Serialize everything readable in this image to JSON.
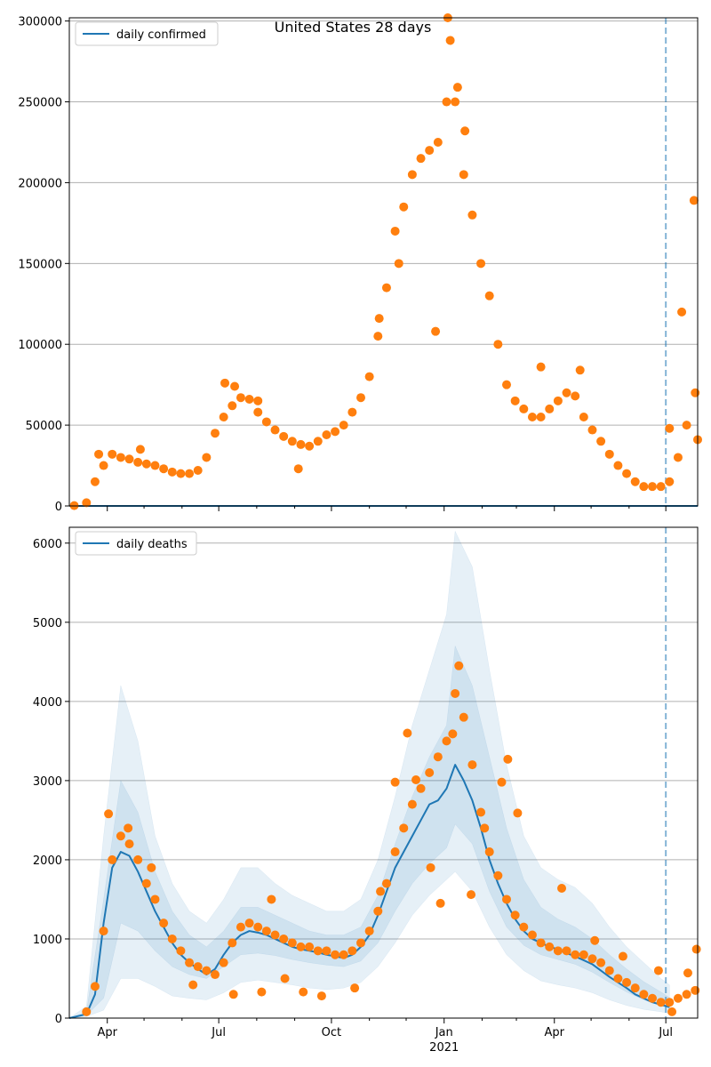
{
  "title": "United States 28 days",
  "colors": {
    "line": "#1f77b4",
    "points": "#ff7f0e",
    "band": "#1f77b4",
    "grid": "#b0b0b0",
    "vline": "#1f77b4"
  },
  "chart_data": [
    {
      "type": "scatter",
      "panel": "top",
      "legend": "top-left",
      "grid": "horizontal",
      "xlim": [
        "2020-03-01",
        "2021-07-27"
      ],
      "ylim": [
        0,
        302000
      ],
      "yticks": [
        0,
        50000,
        100000,
        150000,
        200000,
        250000,
        300000
      ],
      "ytick_labels": [
        "0",
        "50000",
        "100000",
        "150000",
        "200000",
        "250000",
        "300000"
      ],
      "vline": "2021-07-01",
      "series": [
        {
          "name": "daily confirmed",
          "kind": "line",
          "x": [
            "2020-03-01",
            "2021-07-27"
          ],
          "y": [
            0,
            0
          ]
        },
        {
          "kind": "scatter",
          "x": [
            "2020-03-05",
            "2020-03-15",
            "2020-03-22",
            "2020-03-29",
            "2020-04-05",
            "2020-04-12",
            "2020-04-19",
            "2020-04-26",
            "2020-05-03",
            "2020-05-10",
            "2020-05-17",
            "2020-05-24",
            "2020-05-31",
            "2020-06-07",
            "2020-06-14",
            "2020-06-21",
            "2020-06-28",
            "2020-07-05",
            "2020-07-12",
            "2020-07-19",
            "2020-07-26",
            "2020-08-02",
            "2020-08-09",
            "2020-08-16",
            "2020-08-23",
            "2020-08-30",
            "2020-09-06",
            "2020-09-13",
            "2020-09-20",
            "2020-09-27",
            "2020-10-04",
            "2020-10-11",
            "2020-10-18",
            "2020-10-25",
            "2020-11-01",
            "2020-11-08",
            "2020-11-15",
            "2020-11-22",
            "2020-11-29",
            "2020-12-06",
            "2020-12-13",
            "2020-12-20",
            "2020-12-27",
            "2021-01-03",
            "2021-01-10",
            "2021-01-17",
            "2021-01-24",
            "2021-01-31",
            "2021-02-07",
            "2021-02-14",
            "2021-02-21",
            "2021-02-28",
            "2021-03-07",
            "2021-03-14",
            "2021-03-21",
            "2021-03-28",
            "2021-04-04",
            "2021-04-11",
            "2021-04-18",
            "2021-04-25",
            "2021-05-02",
            "2021-05-09",
            "2021-05-16",
            "2021-05-23",
            "2021-05-30",
            "2021-06-06",
            "2021-06-13",
            "2021-06-20",
            "2021-06-27",
            "2021-07-04",
            "2021-07-11",
            "2021-07-18",
            "2021-07-25"
          ],
          "y": [
            200,
            2000,
            15000,
            25000,
            32000,
            30000,
            29000,
            27000,
            26000,
            25000,
            23000,
            21000,
            20000,
            20000,
            22000,
            30000,
            45000,
            55000,
            62000,
            67000,
            66000,
            58000,
            52000,
            47000,
            43000,
            40000,
            38000,
            37000,
            40000,
            44000,
            46000,
            50000,
            58000,
            67000,
            80000,
            105000,
            135000,
            170000,
            185000,
            205000,
            215000,
            220000,
            225000,
            250000,
            250000,
            205000,
            180000,
            150000,
            130000,
            100000,
            75000,
            65000,
            60000,
            55000,
            55000,
            60000,
            65000,
            70000,
            68000,
            55000,
            47000,
            40000,
            32000,
            25000,
            20000,
            15000,
            12000,
            12000,
            12000,
            15000,
            30000,
            50000,
            70000
          ]
        },
        {
          "kind": "scatter",
          "x": [
            "2020-03-25",
            "2020-04-28",
            "2020-07-06",
            "2020-07-14",
            "2020-08-02",
            "2020-09-04",
            "2020-11-09",
            "2020-11-25",
            "2020-12-25",
            "2021-01-04",
            "2021-01-06",
            "2021-01-12",
            "2021-01-18",
            "2021-03-21",
            "2021-04-22",
            "2021-07-04",
            "2021-07-14",
            "2021-07-24",
            "2021-07-27"
          ],
          "y": [
            32000,
            35000,
            76000,
            74000,
            65000,
            23000,
            116000,
            150000,
            108000,
            302000,
            288000,
            259000,
            232000,
            86000,
            84000,
            48000,
            120000,
            189000,
            41000
          ]
        }
      ]
    },
    {
      "type": "line",
      "panel": "bottom",
      "legend": "top-left",
      "grid": "horizontal",
      "xlim": [
        "2020-03-01",
        "2021-07-27"
      ],
      "ylim": [
        0,
        6200
      ],
      "yticks": [
        0,
        1000,
        2000,
        3000,
        4000,
        5000,
        6000
      ],
      "ytick_labels": [
        "0",
        "1000",
        "2000",
        "3000",
        "4000",
        "5000",
        "6000"
      ],
      "vline": "2021-07-01",
      "xticks": [
        {
          "date": "2020-04-01",
          "label": "Apr"
        },
        {
          "date": "2020-07-01",
          "label": "Jul"
        },
        {
          "date": "2020-10-01",
          "label": "Oct"
        },
        {
          "date": "2021-01-01",
          "label": "Jan",
          "sublabel": "2021"
        },
        {
          "date": "2021-04-01",
          "label": "Apr"
        },
        {
          "date": "2021-07-01",
          "label": "Jul"
        }
      ],
      "series": [
        {
          "name": "daily deaths",
          "kind": "line",
          "x": [
            "2020-03-01",
            "2020-03-15",
            "2020-03-22",
            "2020-03-29",
            "2020-04-05",
            "2020-04-12",
            "2020-04-19",
            "2020-04-26",
            "2020-05-03",
            "2020-05-10",
            "2020-05-17",
            "2020-05-24",
            "2020-05-31",
            "2020-06-07",
            "2020-06-14",
            "2020-06-21",
            "2020-06-28",
            "2020-07-05",
            "2020-07-12",
            "2020-07-19",
            "2020-07-26",
            "2020-08-02",
            "2020-08-09",
            "2020-08-16",
            "2020-08-23",
            "2020-08-30",
            "2020-09-06",
            "2020-09-13",
            "2020-09-20",
            "2020-09-27",
            "2020-10-04",
            "2020-10-11",
            "2020-10-18",
            "2020-10-25",
            "2020-11-01",
            "2020-11-08",
            "2020-11-15",
            "2020-11-22",
            "2020-11-29",
            "2020-12-06",
            "2020-12-13",
            "2020-12-20",
            "2020-12-27",
            "2021-01-03",
            "2021-01-10",
            "2021-01-17",
            "2021-01-24",
            "2021-01-31",
            "2021-02-07",
            "2021-02-14",
            "2021-02-21",
            "2021-02-28",
            "2021-03-07",
            "2021-03-14",
            "2021-03-21",
            "2021-03-28",
            "2021-04-04",
            "2021-04-11",
            "2021-04-18",
            "2021-04-25",
            "2021-05-02",
            "2021-05-09",
            "2021-05-16",
            "2021-05-23",
            "2021-05-30",
            "2021-06-06",
            "2021-06-13",
            "2021-06-20",
            "2021-06-27",
            "2021-07-04"
          ],
          "y": [
            0,
            50,
            300,
            1200,
            1900,
            2100,
            2050,
            1850,
            1600,
            1350,
            1150,
            950,
            800,
            700,
            620,
            550,
            620,
            800,
            950,
            1050,
            1100,
            1080,
            1050,
            1000,
            950,
            900,
            870,
            850,
            830,
            800,
            780,
            760,
            800,
            900,
            1050,
            1300,
            1600,
            1900,
            2100,
            2300,
            2500,
            2700,
            2750,
            2900,
            3200,
            3000,
            2750,
            2400,
            2000,
            1700,
            1450,
            1250,
            1100,
            1000,
            950,
            900,
            870,
            820,
            780,
            730,
            680,
            600,
            520,
            450,
            380,
            300,
            250,
            200,
            170,
            140
          ]
        },
        {
          "kind": "band",
          "x": [
            "2020-03-01",
            "2020-03-15",
            "2020-03-29",
            "2020-04-12",
            "2020-04-26",
            "2020-05-10",
            "2020-05-24",
            "2020-06-07",
            "2020-06-21",
            "2020-07-05",
            "2020-07-19",
            "2020-08-02",
            "2020-08-16",
            "2020-08-30",
            "2020-09-13",
            "2020-09-27",
            "2020-10-11",
            "2020-10-25",
            "2020-11-08",
            "2020-11-22",
            "2020-12-06",
            "2020-12-20",
            "2021-01-03",
            "2021-01-10",
            "2021-01-24",
            "2021-02-07",
            "2021-02-21",
            "2021-03-07",
            "2021-03-21",
            "2021-04-04",
            "2021-04-18",
            "2021-05-02",
            "2021-05-16",
            "2021-05-30",
            "2021-06-13",
            "2021-06-27",
            "2021-07-04"
          ],
          "lower": [
            0,
            20,
            100,
            500,
            500,
            400,
            280,
            250,
            230,
            320,
            450,
            480,
            450,
            420,
            380,
            360,
            380,
            450,
            650,
            950,
            1300,
            1550,
            1750,
            1850,
            1600,
            1150,
            800,
            600,
            470,
            420,
            380,
            320,
            230,
            160,
            110,
            80,
            60
          ],
          "upper": [
            0,
            150,
            2300,
            4200,
            3500,
            2300,
            1700,
            1350,
            1200,
            1500,
            1900,
            1900,
            1700,
            1550,
            1450,
            1350,
            1350,
            1500,
            2000,
            2800,
            3700,
            4400,
            5100,
            6150,
            5700,
            4400,
            3200,
            2300,
            1900,
            1750,
            1650,
            1450,
            1150,
            900,
            700,
            500,
            420
          ]
        },
        {
          "kind": "band",
          "x": [
            "2020-03-01",
            "2020-03-15",
            "2020-03-29",
            "2020-04-12",
            "2020-04-26",
            "2020-05-10",
            "2020-05-24",
            "2020-06-07",
            "2020-06-21",
            "2020-07-05",
            "2020-07-19",
            "2020-08-02",
            "2020-08-16",
            "2020-08-30",
            "2020-09-13",
            "2020-09-27",
            "2020-10-11",
            "2020-10-25",
            "2020-11-08",
            "2020-11-22",
            "2020-12-06",
            "2020-12-20",
            "2021-01-03",
            "2021-01-10",
            "2021-01-24",
            "2021-02-07",
            "2021-02-21",
            "2021-03-07",
            "2021-03-21",
            "2021-04-04",
            "2021-04-18",
            "2021-05-02",
            "2021-05-16",
            "2021-05-30",
            "2021-06-13",
            "2021-06-27",
            "2021-07-04"
          ],
          "lower": [
            0,
            35,
            250,
            1200,
            1100,
            850,
            650,
            550,
            500,
            650,
            800,
            820,
            790,
            740,
            700,
            670,
            650,
            720,
            950,
            1350,
            1700,
            1950,
            2150,
            2450,
            2200,
            1600,
            1150,
            920,
            800,
            740,
            680,
            580,
            450,
            330,
            230,
            160,
            120
          ],
          "upper": [
            0,
            80,
            1500,
            3000,
            2600,
            1850,
            1350,
            1050,
            900,
            1100,
            1400,
            1400,
            1300,
            1200,
            1100,
            1050,
            1050,
            1150,
            1550,
            2200,
            2800,
            3300,
            3700,
            4700,
            4200,
            3300,
            2400,
            1750,
            1400,
            1250,
            1150,
            1000,
            800,
            620,
            460,
            330,
            260
          ]
        },
        {
          "kind": "scatter",
          "x": [
            "2020-03-15",
            "2020-03-22",
            "2020-03-29",
            "2020-04-05",
            "2020-04-12",
            "2020-04-19",
            "2020-04-26",
            "2020-05-03",
            "2020-05-10",
            "2020-05-17",
            "2020-05-24",
            "2020-05-31",
            "2020-06-07",
            "2020-06-14",
            "2020-06-21",
            "2020-06-28",
            "2020-07-05",
            "2020-07-12",
            "2020-07-19",
            "2020-07-26",
            "2020-08-02",
            "2020-08-09",
            "2020-08-16",
            "2020-08-23",
            "2020-08-30",
            "2020-09-06",
            "2020-09-13",
            "2020-09-20",
            "2020-09-27",
            "2020-10-04",
            "2020-10-11",
            "2020-10-18",
            "2020-10-25",
            "2020-11-01",
            "2020-11-08",
            "2020-11-15",
            "2020-11-22",
            "2020-11-29",
            "2020-12-06",
            "2020-12-13",
            "2020-12-20",
            "2020-12-27",
            "2021-01-03",
            "2021-01-10",
            "2021-01-17",
            "2021-01-24",
            "2021-01-31",
            "2021-02-07",
            "2021-02-14",
            "2021-02-21",
            "2021-02-28",
            "2021-03-07",
            "2021-03-14",
            "2021-03-21",
            "2021-03-28",
            "2021-04-04",
            "2021-04-11",
            "2021-04-18",
            "2021-04-25",
            "2021-05-02",
            "2021-05-09",
            "2021-05-16",
            "2021-05-23",
            "2021-05-30",
            "2021-06-06",
            "2021-06-13",
            "2021-06-20",
            "2021-06-27",
            "2021-07-04",
            "2021-07-11",
            "2021-07-18",
            "2021-07-25"
          ],
          "y": [
            80,
            400,
            1100,
            2000,
            2300,
            2200,
            2000,
            1700,
            1500,
            1200,
            1000,
            850,
            700,
            650,
            600,
            550,
            700,
            950,
            1150,
            1200,
            1150,
            1100,
            1050,
            1000,
            950,
            900,
            900,
            850,
            850,
            800,
            800,
            850,
            950,
            1100,
            1350,
            1700,
            2100,
            2400,
            2700,
            2900,
            3100,
            3300,
            3500,
            4100,
            3800,
            3200,
            2600,
            2100,
            1800,
            1500,
            1300,
            1150,
            1050,
            950,
            900,
            850,
            850,
            800,
            800,
            750,
            700,
            600,
            500,
            450,
            380,
            300,
            250,
            200,
            200,
            250,
            300,
            350
          ]
        },
        {
          "kind": "scatter",
          "x": [
            "2020-04-02",
            "2020-04-18",
            "2020-05-07",
            "2020-06-10",
            "2020-07-13",
            "2020-08-05",
            "2020-08-13",
            "2020-08-24",
            "2020-09-08",
            "2020-09-23",
            "2020-10-20",
            "2020-11-10",
            "2020-11-22",
            "2020-12-02",
            "2020-12-09",
            "2020-12-21",
            "2020-12-29",
            "2021-01-08",
            "2021-01-13",
            "2021-01-23",
            "2021-02-03",
            "2021-02-17",
            "2021-02-22",
            "2021-03-02",
            "2021-04-07",
            "2021-05-04",
            "2021-05-27",
            "2021-06-25",
            "2021-07-06",
            "2021-07-19",
            "2021-07-26"
          ],
          "y": [
            2580,
            2400,
            1900,
            420,
            300,
            330,
            1500,
            500,
            330,
            280,
            380,
            1600,
            2980,
            3600,
            3010,
            1900,
            1450,
            3590,
            4450,
            1560,
            2400,
            2980,
            3270,
            2590,
            1640,
            980,
            780,
            600,
            80,
            570,
            870
          ]
        }
      ]
    }
  ]
}
